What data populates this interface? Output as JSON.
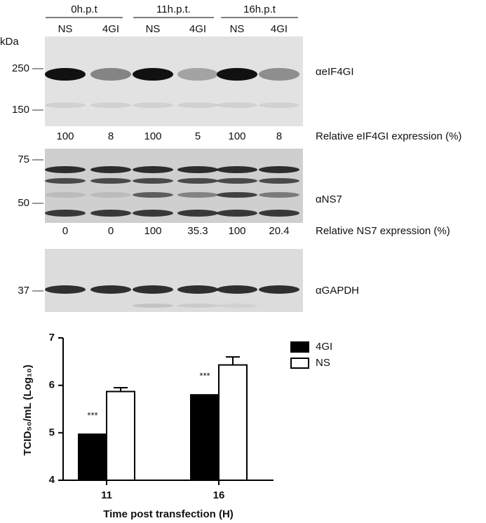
{
  "blot": {
    "kda_label": "kDa",
    "timepoints": [
      "0h.p.t",
      "11h.p.t.",
      "16h.p.t"
    ],
    "lanes": [
      "NS",
      "4GI",
      "NS",
      "4GI",
      "NS",
      "4GI"
    ],
    "panels": [
      {
        "antibody": "αeIF4GI",
        "markers": [
          "250",
          "150"
        ],
        "quant_label": "Relative eIF4GI expression (%)",
        "quant": [
          100,
          8,
          100,
          5,
          100,
          8
        ]
      },
      {
        "antibody": "αNS7",
        "markers": [
          "75",
          "50"
        ],
        "quant_label": "Relative NS7 expression (%)",
        "quant": [
          0,
          0,
          100,
          35.3,
          100,
          20.4
        ]
      },
      {
        "antibody": "αGAPDH",
        "markers": [
          "37"
        ]
      }
    ]
  },
  "chart_data": {
    "type": "bar",
    "categories": [
      "11",
      "16"
    ],
    "series": [
      {
        "name": "4GI",
        "color": "#000000",
        "values": [
          4.97,
          5.8
        ],
        "labels": [
          "***",
          "***"
        ]
      },
      {
        "name": "NS",
        "color": "#ffffff",
        "values": [
          5.87,
          6.43
        ],
        "errors": [
          0.08,
          0.17
        ]
      }
    ],
    "ylim": [
      4,
      7
    ],
    "yticks": [
      4,
      5,
      6,
      7
    ],
    "xlabel": "Time post transfection (H)",
    "ylabel": "TCID₅₀/mL (Log₁₀)"
  }
}
